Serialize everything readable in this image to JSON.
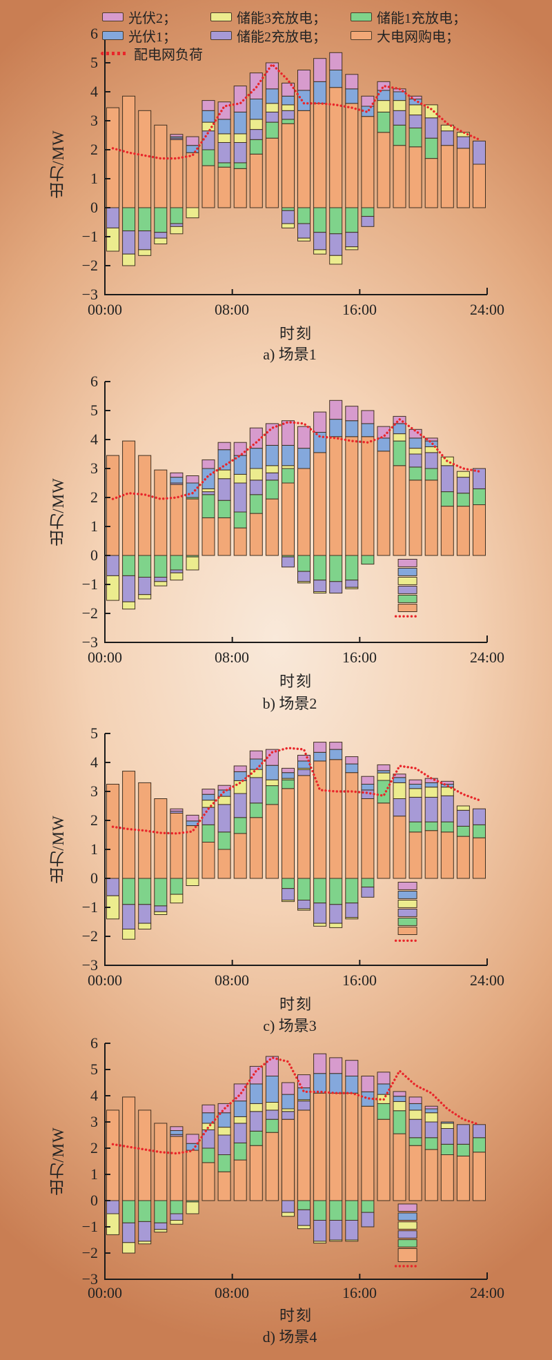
{
  "page": {
    "background_outer": "#c97e53",
    "background_inner": "#f9e9da"
  },
  "series_colors": {
    "grid": "#f2a877",
    "storage1": "#7fd38b",
    "storage2": "#a79ad6",
    "storage3": "#ecec8e",
    "pv1": "#84a8dc",
    "pv2": "#d79bcd",
    "load": "#e8262a",
    "bar_stroke": "#3f2f20",
    "axis": "#1a1a1a"
  },
  "legend": {
    "items": [
      {
        "series": "pv2",
        "label": "光伏2；"
      },
      {
        "series": "storage3",
        "label": "储能3充放电；"
      },
      {
        "series": "storage1",
        "label": "储能1充放电；"
      },
      {
        "series": "pv1",
        "label": "光伏1；"
      },
      {
        "series": "storage2",
        "label": "储能2充放电；"
      },
      {
        "series": "grid",
        "label": "大电网购电；"
      }
    ],
    "line_label": "配电网负荷"
  },
  "chart_data": [
    {
      "type": "bar",
      "subtype": "stacked-bars-with-dotted-line",
      "caption": "a) 场景1",
      "ylabel": "出力/MW",
      "xlabel": "时刻",
      "ymin": -3,
      "ymax": 6,
      "x_ticks": [
        "00:00",
        "08:00",
        "16:00",
        "24:00"
      ],
      "categories": [
        1,
        2,
        3,
        4,
        5,
        6,
        7,
        8,
        9,
        10,
        11,
        12,
        13,
        14,
        15,
        16,
        17,
        18,
        19,
        20,
        21,
        22,
        23,
        24
      ],
      "series_pos": {
        "grid": [
          3.45,
          3.85,
          3.35,
          2.85,
          2.35,
          1.9,
          1.45,
          1.4,
          1.35,
          1.85,
          2.4,
          2.9,
          3.35,
          3.6,
          4.15,
          3.6,
          3.15,
          2.6,
          2.15,
          2.1,
          1.7,
          2.15,
          2.05,
          1.5
        ],
        "storage1": [
          0,
          0,
          0,
          0,
          0,
          0,
          0.55,
          0.15,
          0.2,
          0.5,
          0.55,
          0.15,
          0,
          0,
          0,
          0,
          0,
          0.7,
          0.7,
          0.65,
          0.7,
          0,
          0,
          0
        ],
        "storage2": [
          0,
          0,
          0,
          0,
          0.05,
          0,
          0.65,
          0.7,
          0.7,
          0.35,
          0.35,
          0.3,
          0,
          0,
          0,
          0,
          0,
          0,
          0.5,
          0.45,
          0.7,
          0.5,
          0.4,
          0.8
        ],
        "storage3": [
          0,
          0,
          0,
          0,
          0,
          0,
          0.3,
          0.3,
          0.3,
          0.35,
          0.3,
          0.2,
          0,
          0,
          0,
          0,
          0,
          0.4,
          0.35,
          0.35,
          0.45,
          0.2,
          0.15,
          0
        ],
        "pv1": [
          0,
          0,
          0,
          0,
          0.05,
          0.25,
          0.4,
          0.5,
          0.75,
          0.7,
          0.5,
          0.3,
          0.7,
          0.75,
          0.6,
          0.5,
          0.35,
          0.35,
          0.3,
          0.2,
          0,
          0,
          0,
          0
        ],
        "pv2": [
          0,
          0,
          0,
          0,
          0.08,
          0.3,
          0.35,
          0.6,
          0.9,
          0.9,
          0.9,
          0.45,
          0.7,
          0.8,
          0.6,
          0.5,
          0.35,
          0.3,
          0.1,
          0.1,
          0,
          0,
          0,
          0
        ]
      },
      "series_neg": {
        "storage1": [
          0,
          0.8,
          0.8,
          0.85,
          0.55,
          0,
          0,
          0,
          0,
          0,
          0,
          0.1,
          0.55,
          0.85,
          0.9,
          0.85,
          0.3,
          0,
          0,
          0,
          0,
          0,
          0,
          0
        ],
        "storage2": [
          0.7,
          0.8,
          0.65,
          0.2,
          0.1,
          0,
          0,
          0,
          0,
          0,
          0,
          0.45,
          0.5,
          0.6,
          0.75,
          0.5,
          0.35,
          0,
          0,
          0,
          0,
          0,
          0,
          0
        ],
        "storage3": [
          0.8,
          0.4,
          0.2,
          0.2,
          0.25,
          0.35,
          0,
          0,
          0,
          0,
          0,
          0.15,
          0.1,
          0.15,
          0.3,
          0.1,
          0,
          0,
          0,
          0,
          0,
          0,
          0,
          0
        ]
      },
      "load": [
        2.05,
        1.9,
        1.8,
        1.7,
        1.7,
        1.8,
        2.6,
        3.5,
        3.6,
        4.15,
        4.95,
        4.4,
        3.6,
        3.6,
        3.55,
        3.45,
        3.3,
        4.2,
        4.1,
        3.7,
        3.4,
        2.9,
        2.6,
        2.35
      ],
      "annotation": null
    },
    {
      "type": "bar",
      "subtype": "stacked-bars-with-dotted-line",
      "caption": "b) 场景2",
      "ylabel": "出力/MW",
      "xlabel": "时刻",
      "ymin": -3,
      "ymax": 6,
      "x_ticks": [
        "00:00",
        "08:00",
        "16:00",
        "24:00"
      ],
      "categories": [
        1,
        2,
        3,
        4,
        5,
        6,
        7,
        8,
        9,
        10,
        11,
        12,
        13,
        14,
        15,
        16,
        17,
        18,
        19,
        20,
        21,
        22,
        23,
        24
      ],
      "series_pos": {
        "grid": [
          3.45,
          3.95,
          3.45,
          2.95,
          2.45,
          1.95,
          1.3,
          1.3,
          0.95,
          1.45,
          1.95,
          2.5,
          3.0,
          3.55,
          4.1,
          4.1,
          4.1,
          3.6,
          3.1,
          2.6,
          2.6,
          1.7,
          1.7,
          1.75
        ],
        "storage1": [
          0,
          0,
          0,
          0,
          0,
          0.05,
          0.8,
          0.6,
          0.55,
          0.65,
          0.65,
          0.5,
          0,
          0,
          0,
          0,
          0,
          0,
          0.85,
          0.45,
          0.4,
          0.5,
          0.45,
          0.55
        ],
        "storage2": [
          0,
          0,
          0,
          0,
          0.05,
          0,
          0.1,
          0.75,
          1.0,
          0.5,
          0.25,
          0,
          0,
          0,
          0,
          0,
          0,
          0,
          0,
          0.45,
          0.55,
          0.9,
          0.55,
          0.7
        ],
        "storage3": [
          0,
          0,
          0,
          0,
          0,
          0,
          0.1,
          0.3,
          0.3,
          0.4,
          0.25,
          0.1,
          0,
          0,
          0,
          0,
          0,
          0,
          0.25,
          0.2,
          0.2,
          0.3,
          0.2,
          0
        ],
        "pv1": [
          0,
          0,
          0,
          0,
          0.2,
          0.5,
          0.7,
          0.7,
          0.65,
          0.7,
          0.7,
          0.7,
          0.7,
          0.7,
          0.6,
          0.55,
          0.45,
          0.45,
          0.35,
          0.35,
          0.2,
          0,
          0,
          0
        ],
        "pv2": [
          0,
          0,
          0,
          0,
          0.15,
          0.25,
          0.3,
          0.25,
          0.45,
          0.7,
          0.75,
          0.85,
          0.75,
          0.7,
          0.65,
          0.5,
          0.45,
          0.4,
          0.25,
          0.3,
          0.1,
          0,
          0,
          0
        ]
      },
      "series_neg": {
        "storage1": [
          0,
          0.7,
          0.75,
          0.75,
          0.5,
          0.05,
          0,
          0,
          0,
          0,
          0,
          0.05,
          0.55,
          0.85,
          0.9,
          0.85,
          0.3,
          0,
          0,
          0,
          0,
          0,
          0,
          0
        ],
        "storage2": [
          0.7,
          0.9,
          0.6,
          0.15,
          0.1,
          0,
          0,
          0,
          0,
          0,
          0,
          0.35,
          0.35,
          0.4,
          0.4,
          0.25,
          0,
          0,
          0,
          0,
          0,
          0,
          0,
          0
        ],
        "storage3": [
          0.85,
          0.25,
          0.15,
          0.15,
          0.25,
          0.45,
          0,
          0,
          0,
          0,
          0,
          0,
          0.05,
          0.05,
          0,
          0.05,
          0,
          0,
          0,
          0,
          0,
          0,
          0,
          0
        ]
      },
      "load": [
        1.95,
        2.15,
        2.1,
        1.95,
        2.0,
        2.15,
        2.75,
        3.1,
        3.45,
        3.9,
        4.4,
        4.6,
        4.55,
        4.1,
        4.05,
        3.95,
        3.9,
        4.1,
        4.7,
        4.3,
        3.9,
        3.25,
        3.0,
        2.9
      ],
      "annotation": {
        "center_hour": 19,
        "start": -0.13,
        "patch_h": 0.26,
        "gap": 0.05,
        "grid_h": 0.26,
        "dots_v": -2.1,
        "patches": [
          "pv2",
          "pv1",
          "storage3",
          "storage2",
          "storage1",
          "grid"
        ]
      }
    },
    {
      "type": "bar",
      "subtype": "stacked-bars-with-dotted-line",
      "caption": "c) 场景3",
      "ylabel": "出力/MW",
      "xlabel": "时刻",
      "ymin": -3,
      "ymax": 5,
      "x_ticks": [
        "00:00",
        "08:00",
        "16:00",
        "24:00"
      ],
      "categories": [
        1,
        2,
        3,
        4,
        5,
        6,
        7,
        8,
        9,
        10,
        11,
        12,
        13,
        14,
        15,
        16,
        17,
        18,
        19,
        20,
        21,
        22,
        23,
        24
      ],
      "series_pos": {
        "grid": [
          3.25,
          3.7,
          3.3,
          2.75,
          2.25,
          1.82,
          1.25,
          1.0,
          1.55,
          2.1,
          2.55,
          3.1,
          3.55,
          4.05,
          4.1,
          3.65,
          2.75,
          2.6,
          2.15,
          1.6,
          1.65,
          1.6,
          1.45,
          1.4
        ],
        "storage1": [
          0,
          0,
          0,
          0,
          0,
          0,
          0.6,
          0.6,
          0.55,
          0.5,
          0.65,
          0.3,
          0,
          0,
          0,
          0,
          0,
          0.78,
          0,
          0.35,
          0.3,
          0.35,
          0.35,
          0.45
        ],
        "storage2": [
          0,
          0,
          0,
          0,
          0.07,
          0,
          0.6,
          0.95,
          0.83,
          0.88,
          0,
          0,
          0.2,
          0,
          0,
          0,
          0.3,
          0,
          0.6,
          0.85,
          0.85,
          0.9,
          0.55,
          0.55
        ],
        "storage3": [
          0,
          0,
          0,
          0,
          0,
          0,
          0.25,
          0.28,
          0.44,
          0.28,
          0.2,
          0.05,
          0.05,
          0,
          0,
          0,
          0,
          0.26,
          0.55,
          0.3,
          0.35,
          0.3,
          0.15,
          0
        ],
        "pv1": [
          0,
          0,
          0,
          0,
          0,
          0.16,
          0.2,
          0.22,
          0.31,
          0.36,
          0.5,
          0.2,
          0.25,
          0.3,
          0.35,
          0.3,
          0.2,
          0.08,
          0.18,
          0.15,
          0.15,
          0.1,
          0,
          0
        ],
        "pv2": [
          0,
          0,
          0,
          0,
          0.08,
          0.2,
          0.18,
          0.16,
          0.2,
          0.28,
          0.55,
          0.15,
          0.2,
          0.35,
          0.25,
          0.25,
          0.27,
          0.2,
          0.12,
          0.15,
          0.15,
          0.1,
          0,
          0
        ]
      },
      "series_neg": {
        "storage1": [
          0,
          0.9,
          0.9,
          0.95,
          0.55,
          0,
          0,
          0,
          0,
          0,
          0,
          0.35,
          0.75,
          0.85,
          0.9,
          0.85,
          0.3,
          0,
          0,
          0,
          0,
          0,
          0,
          0
        ],
        "storage2": [
          0.6,
          0.85,
          0.65,
          0.2,
          0,
          0,
          0,
          0,
          0,
          0,
          0,
          0.4,
          0.3,
          0.7,
          0.65,
          0.5,
          0.35,
          0,
          0,
          0,
          0,
          0,
          0,
          0
        ],
        "storage3": [
          0.8,
          0.35,
          0.2,
          0.1,
          0.3,
          0.25,
          0,
          0,
          0,
          0,
          0,
          0.05,
          0.05,
          0.1,
          0.15,
          0.05,
          0,
          0,
          0,
          0,
          0,
          0,
          0,
          0
        ]
      },
      "load": [
        1.78,
        1.7,
        1.65,
        1.57,
        1.55,
        1.62,
        2.4,
        3.0,
        3.3,
        3.75,
        4.35,
        4.5,
        4.45,
        3.05,
        3.0,
        3.0,
        2.95,
        2.85,
        3.88,
        3.8,
        3.45,
        3.2,
        2.9,
        2.7
      ],
      "annotation": {
        "center_hour": 19,
        "start": -0.13,
        "patch_h": 0.26,
        "gap": 0.05,
        "grid_h": 0.26,
        "dots_v": -2.15,
        "patches": [
          "pv2",
          "pv1",
          "storage3",
          "storage2",
          "storage1",
          "grid"
        ]
      }
    },
    {
      "type": "bar",
      "subtype": "stacked-bars-with-dotted-line",
      "caption": "d) 场景4",
      "ylabel": "出力/MW",
      "xlabel": "时刻",
      "ymin": -3,
      "ymax": 6,
      "x_ticks": [
        "00:00",
        "08:00",
        "16:00",
        "24:00"
      ],
      "categories": [
        1,
        2,
        3,
        4,
        5,
        6,
        7,
        8,
        9,
        10,
        11,
        12,
        13,
        14,
        15,
        16,
        17,
        18,
        19,
        20,
        21,
        22,
        23,
        24
      ],
      "series_pos": {
        "grid": [
          3.45,
          3.95,
          3.45,
          2.95,
          2.45,
          1.92,
          1.45,
          1.1,
          1.55,
          2.1,
          2.6,
          3.1,
          3.45,
          4.1,
          4.1,
          4.1,
          3.6,
          3.1,
          2.55,
          2.1,
          1.95,
          1.75,
          1.7,
          1.85
        ],
        "storage1": [
          0,
          0,
          0,
          0,
          0,
          0,
          0.55,
          0.65,
          0.65,
          0.55,
          0.5,
          0,
          0,
          0,
          0,
          0,
          0,
          0.6,
          0.88,
          0.3,
          0.45,
          0.4,
          0.45,
          0.55
        ],
        "storage2": [
          0,
          0,
          0,
          0,
          0.07,
          0,
          0.7,
          0.75,
          0.75,
          0.75,
          0.35,
          0.3,
          0.35,
          0,
          0,
          0,
          0,
          0,
          0,
          0.7,
          0.6,
          0.6,
          0.75,
          0.5
        ],
        "storage3": [
          0,
          0,
          0,
          0,
          0,
          0,
          0.25,
          0.3,
          0.25,
          0.3,
          0.3,
          0.1,
          0.05,
          0,
          0,
          0,
          0,
          0.35,
          0.35,
          0.35,
          0.35,
          0.2,
          0,
          0
        ],
        "pv1": [
          0,
          0,
          0,
          0,
          0.15,
          0.26,
          0.4,
          0.55,
          0.6,
          0.75,
          1.0,
          0.55,
          0.45,
          0.75,
          0.75,
          0.65,
          0.55,
          0.4,
          0.2,
          0.25,
          0.15,
          0.05,
          0,
          0
        ],
        "pv2": [
          0,
          0,
          0,
          0,
          0.15,
          0.35,
          0.3,
          0.35,
          0.65,
          0.67,
          0.75,
          0.45,
          0.5,
          0.75,
          0.6,
          0.6,
          0.6,
          0.45,
          0.18,
          0.25,
          0.1,
          0,
          0,
          0
        ]
      },
      "series_neg": {
        "storage1": [
          0,
          0.85,
          0.8,
          0.85,
          0.5,
          0.05,
          0,
          0,
          0,
          0,
          0,
          0,
          0.35,
          0.75,
          0.75,
          0.75,
          0.45,
          0,
          0,
          0,
          0,
          0,
          0,
          0
        ],
        "storage2": [
          0.5,
          0.75,
          0.75,
          0.25,
          0.25,
          0,
          0,
          0,
          0,
          0,
          0,
          0.45,
          0.6,
          0.8,
          0.75,
          0.75,
          0.55,
          0,
          0,
          0,
          0,
          0,
          0,
          0
        ],
        "storage3": [
          0.8,
          0.4,
          0.1,
          0.1,
          0.15,
          0.45,
          0,
          0,
          0,
          0,
          0,
          0.15,
          0.12,
          0.07,
          0.05,
          0.05,
          0,
          0,
          0,
          0,
          0,
          0,
          0,
          0
        ]
      },
      "load": [
        2.15,
        2.05,
        1.95,
        1.85,
        1.8,
        1.9,
        2.8,
        3.5,
        4.05,
        4.95,
        5.45,
        5.3,
        4.15,
        4.15,
        4.1,
        4.1,
        3.9,
        3.85,
        4.95,
        4.4,
        4.1,
        3.5,
        3.1,
        2.9
      ],
      "annotation": {
        "center_hour": 19,
        "start": -0.13,
        "patch_h": 0.28,
        "gap": 0.06,
        "grid_h": 0.5,
        "dots_v": -2.5,
        "patches": [
          "pv2",
          "pv1",
          "storage3",
          "storage2",
          "storage1",
          "grid"
        ]
      }
    }
  ]
}
